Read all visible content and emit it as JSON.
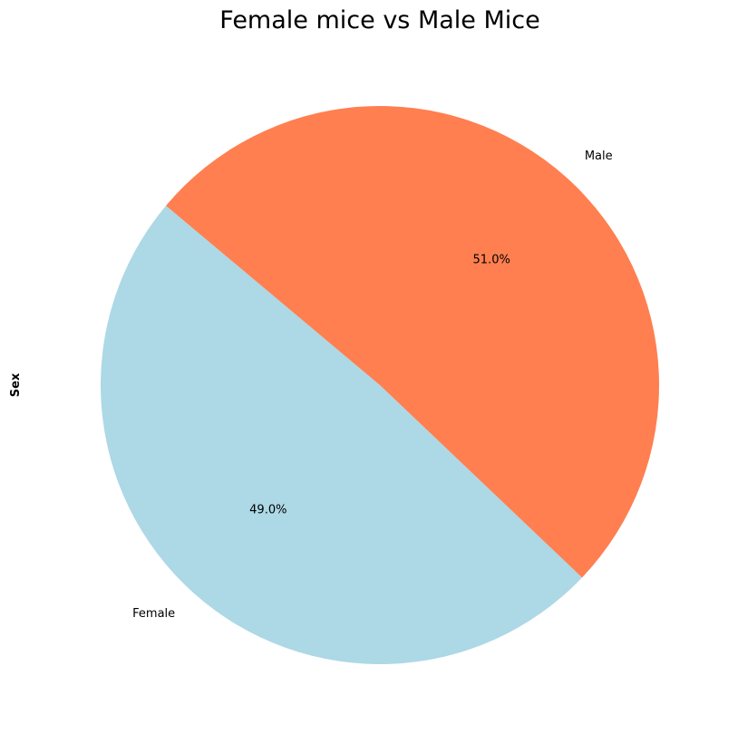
{
  "chart_data": {
    "type": "pie",
    "title": "Female mice vs Male Mice",
    "ylabel": "Sex",
    "categories": [
      "Female",
      "Male"
    ],
    "values": [
      49.0,
      51.0
    ],
    "percent_labels": [
      "49.0%",
      "51.0%"
    ],
    "colors": [
      "#add8e6",
      "#ff7f50"
    ],
    "startangle_deg": 140,
    "direction": "counterclockwise",
    "legend": "none"
  }
}
